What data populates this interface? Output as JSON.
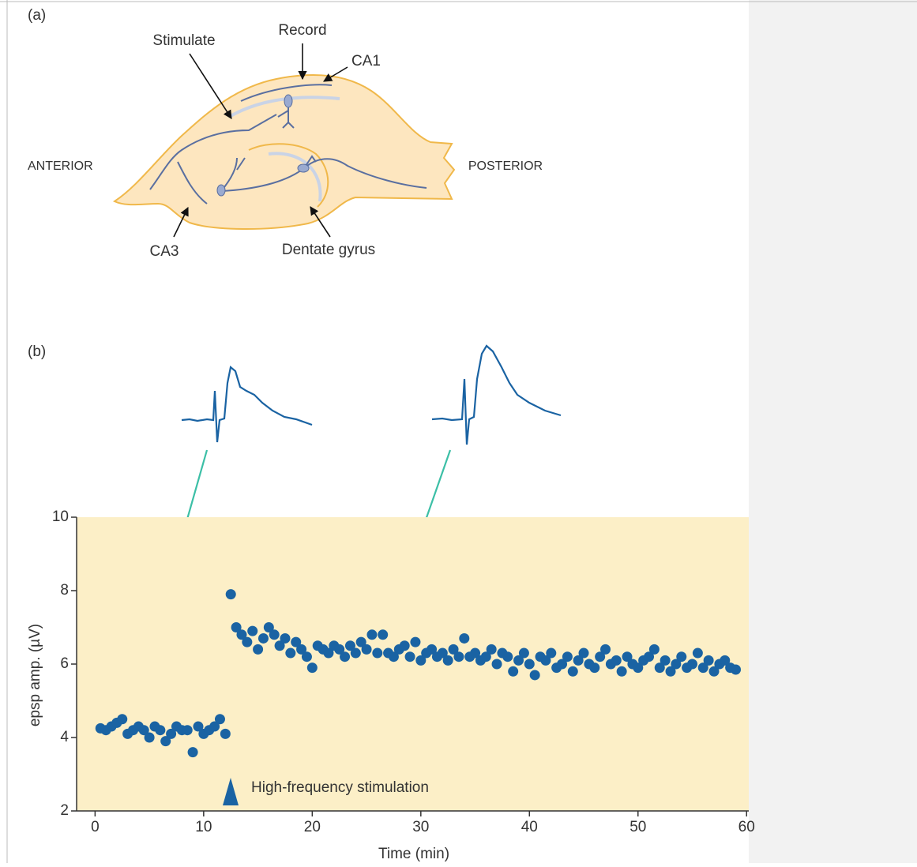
{
  "panel_a": {
    "label": "(a)",
    "stimulate": "Stimulate",
    "record": "Record",
    "ca1": "CA1",
    "anterior": "ANTERIOR",
    "posterior": "POSTERIOR",
    "ca3": "CA3",
    "dentate": "Dentate gyrus"
  },
  "chart_data": {
    "type": "scatter",
    "panel_label": "(b)",
    "x_label": "Time (min)",
    "y_label": "epsp amp. (µV)",
    "annotation": "High-frequency stimulation",
    "xlim": [
      -1.7,
      60.2
    ],
    "ylim": [
      2,
      10
    ],
    "xticks": [
      0,
      10,
      20,
      30,
      40,
      50,
      60
    ],
    "yticks": [
      2,
      4,
      6,
      8,
      10
    ],
    "background": "#fcefc7",
    "series": [
      {
        "color": "#1a63a3",
        "x": [
          0.5,
          1,
          1.5,
          2,
          2.5,
          3,
          3.5,
          4,
          4.5,
          5,
          5.5,
          6,
          6.5,
          7,
          7.5,
          8,
          8.5,
          9,
          9.5,
          10,
          10.5,
          11,
          11.5,
          12,
          12.5,
          13,
          13.5,
          14,
          14.5,
          15,
          15.5,
          16,
          16.5,
          17,
          17.5,
          18,
          18.5,
          19,
          19.5,
          20,
          20.5,
          21,
          21.5,
          22,
          22.5,
          23,
          23.5,
          24,
          24.5,
          25,
          25.5,
          26,
          26.5,
          27,
          27.5,
          28,
          28.5,
          29,
          29.5,
          30,
          30.5,
          31,
          31.5,
          32,
          32.5,
          33,
          33.5,
          34,
          34.5,
          35,
          35.5,
          36,
          36.5,
          37,
          37.5,
          38,
          38.5,
          39,
          39.5,
          40,
          40.5,
          41,
          41.5,
          42,
          42.5,
          43,
          43.5,
          44,
          44.5,
          45,
          45.5,
          46,
          46.5,
          47,
          47.5,
          48,
          48.5,
          49,
          49.5,
          50,
          50.5,
          51,
          51.5,
          52,
          52.5,
          53,
          53.5,
          54,
          54.5,
          55,
          55.5,
          56,
          56.5,
          57,
          57.5,
          58,
          58.5,
          59
        ],
        "values": [
          4.25,
          4.2,
          4.3,
          4.4,
          4.5,
          4.1,
          4.2,
          4.3,
          4.2,
          4.0,
          4.3,
          4.2,
          3.9,
          4.1,
          4.3,
          4.2,
          4.2,
          3.6,
          4.3,
          4.1,
          4.2,
          4.3,
          4.5,
          4.1,
          7.9,
          7.0,
          6.8,
          6.6,
          6.9,
          6.4,
          6.7,
          7.0,
          6.8,
          6.5,
          6.7,
          6.3,
          6.6,
          6.4,
          6.2,
          5.9,
          6.5,
          6.4,
          6.3,
          6.5,
          6.4,
          6.2,
          6.5,
          6.3,
          6.6,
          6.4,
          6.8,
          6.3,
          6.8,
          6.3,
          6.2,
          6.4,
          6.5,
          6.2,
          6.6,
          6.1,
          6.3,
          6.4,
          6.2,
          6.3,
          6.1,
          6.4,
          6.2,
          6.7,
          6.2,
          6.3,
          6.1,
          6.2,
          6.4,
          6.0,
          6.3,
          6.2,
          5.8,
          6.1,
          6.3,
          6.0,
          5.7,
          6.2,
          6.1,
          6.3,
          5.9,
          6.0,
          6.2,
          5.8,
          6.1,
          6.3,
          6.0,
          5.9,
          6.2,
          6.4,
          6.0,
          6.1,
          5.8,
          6.2,
          6.0,
          5.9,
          6.1,
          6.2,
          6.4,
          5.9,
          6.1,
          5.8,
          6.0,
          6.2,
          5.9,
          6.0,
          6.3,
          5.9,
          6.1,
          5.8,
          6.0,
          6.1,
          5.9,
          5.85
        ]
      }
    ]
  }
}
